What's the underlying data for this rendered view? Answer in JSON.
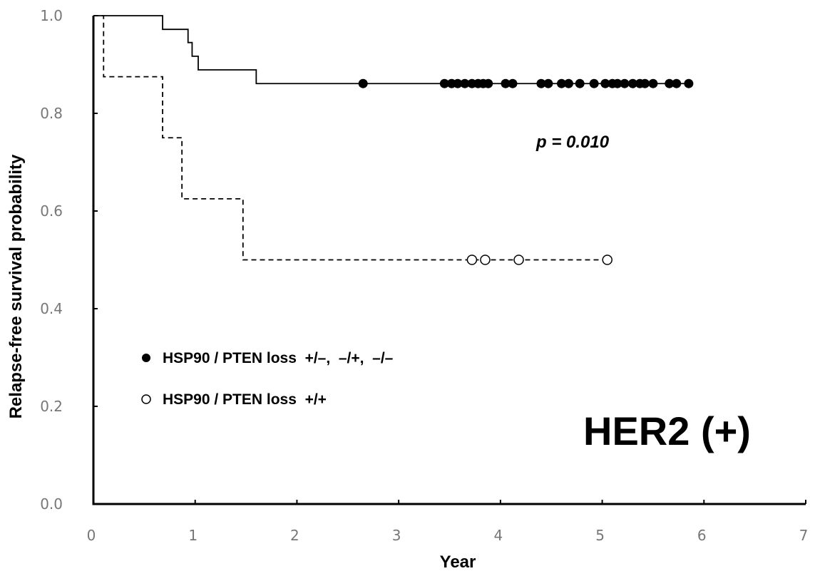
{
  "chart_data": {
    "type": "line",
    "title": "",
    "xlabel": "Year",
    "ylabel": "Relapse-free survival probability",
    "xlim": [
      0,
      7
    ],
    "ylim": [
      0,
      1.0
    ],
    "x_ticks": [
      "0",
      "1",
      "2",
      "3",
      "4",
      "5",
      "6",
      "7"
    ],
    "y_ticks": [
      "0.0",
      "0.2",
      "0.4",
      "0.6",
      "0.8",
      "1.0"
    ],
    "grid": false,
    "legend_position": "lower-left",
    "annotation": "p = 0.010",
    "subgroup_label": "HER2 (+)",
    "series": [
      {
        "name": "HSP90 / PTEN loss  +/–,  –/+,  –/–",
        "line_style": "solid",
        "marker": "filled-circle",
        "color": "#000000",
        "steps": [
          [
            0,
            1.0
          ],
          [
            0.68,
            0.972
          ],
          [
            0.93,
            0.945
          ],
          [
            0.97,
            0.917
          ],
          [
            1.03,
            0.889
          ],
          [
            1.6,
            0.861
          ],
          [
            5.85,
            0.861
          ]
        ],
        "censored": [
          2.65,
          3.45,
          3.52,
          3.58,
          3.65,
          3.72,
          3.78,
          3.83,
          3.88,
          4.05,
          4.12,
          4.4,
          4.47,
          4.6,
          4.67,
          4.78,
          4.92,
          5.03,
          5.1,
          5.15,
          5.22,
          5.3,
          5.37,
          5.42,
          5.5,
          5.66,
          5.73,
          5.85
        ]
      },
      {
        "name": "HSP90 / PTEN loss  +/+",
        "line_style": "dashed",
        "marker": "open-circle",
        "color": "#000000",
        "steps": [
          [
            0,
            1.0
          ],
          [
            0.1,
            0.875
          ],
          [
            0.68,
            0.75
          ],
          [
            0.87,
            0.625
          ],
          [
            1.47,
            0.5
          ],
          [
            5.05,
            0.5
          ]
        ],
        "censored": [
          3.72,
          3.85,
          4.18,
          5.05
        ]
      }
    ]
  }
}
